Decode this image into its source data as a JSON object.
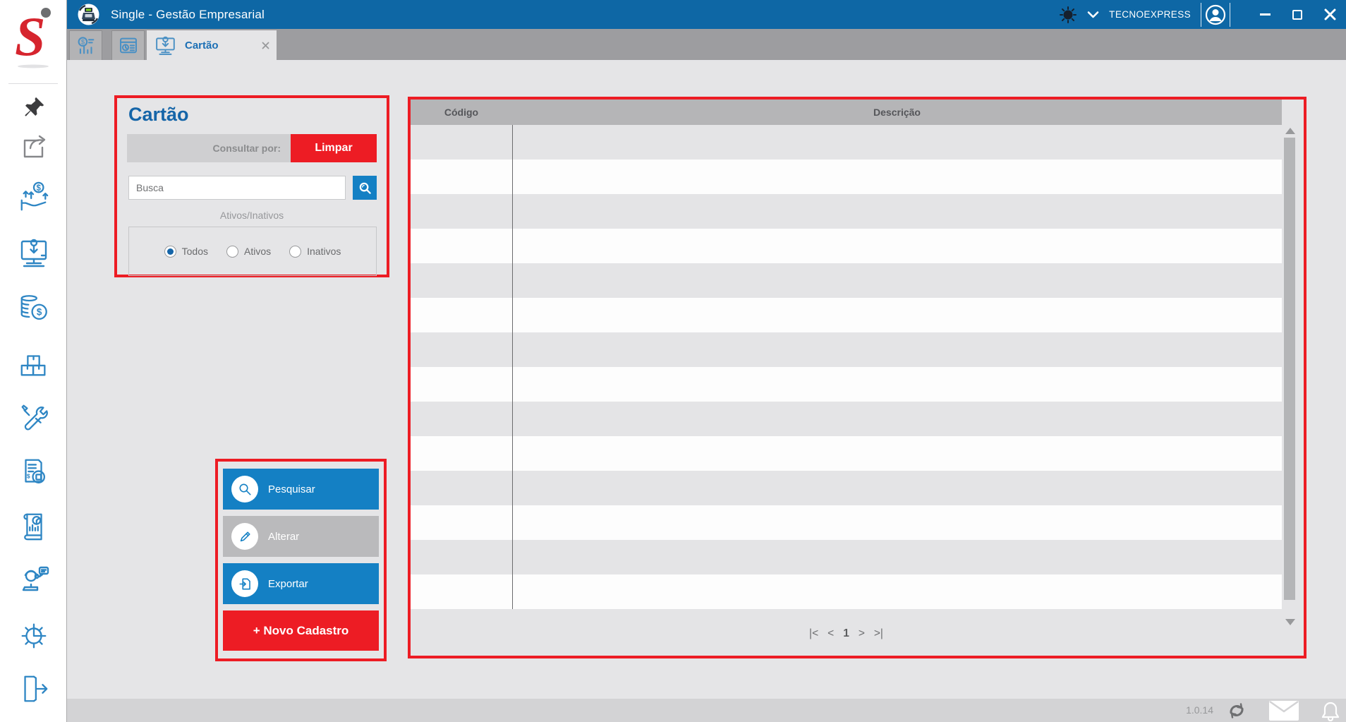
{
  "titlebar": {
    "title": "Single - Gestão Empresarial",
    "account": "TECNOEXPRESS"
  },
  "tabbar": {
    "active_tab": "Cartão"
  },
  "search_panel": {
    "title": "Cartão",
    "consult_label": "Consultar por:",
    "clear_label": "Limpar",
    "search_placeholder": "Busca",
    "search_value": "",
    "status_group_label": "Ativos/Inativos",
    "radios": [
      {
        "label": "Todos",
        "selected": true
      },
      {
        "label": "Ativos",
        "selected": false
      },
      {
        "label": "Inativos",
        "selected": false
      }
    ]
  },
  "actions": {
    "search_label": "Pesquisar",
    "edit_label": "Alterar",
    "export_label": "Exportar",
    "new_label": "+ Novo Cadastro"
  },
  "table": {
    "columns": [
      "Código",
      "Descrição"
    ],
    "row_count": 14,
    "rows": [],
    "pagination": {
      "first": "|<",
      "prev": "<",
      "page": "1",
      "next": ">",
      "last": ">|"
    }
  },
  "footer": {
    "version": "1.0.14"
  },
  "colors": {
    "titlebar_blue": "#0e67a5",
    "accent_blue": "#1480c4",
    "brand_red": "#ed1c24"
  },
  "sidebar": {
    "icons": [
      "single-logo",
      "pin",
      "share",
      "receivables",
      "registration",
      "coins",
      "stock",
      "tools",
      "invoice",
      "reports",
      "support",
      "settings",
      "logout"
    ]
  }
}
